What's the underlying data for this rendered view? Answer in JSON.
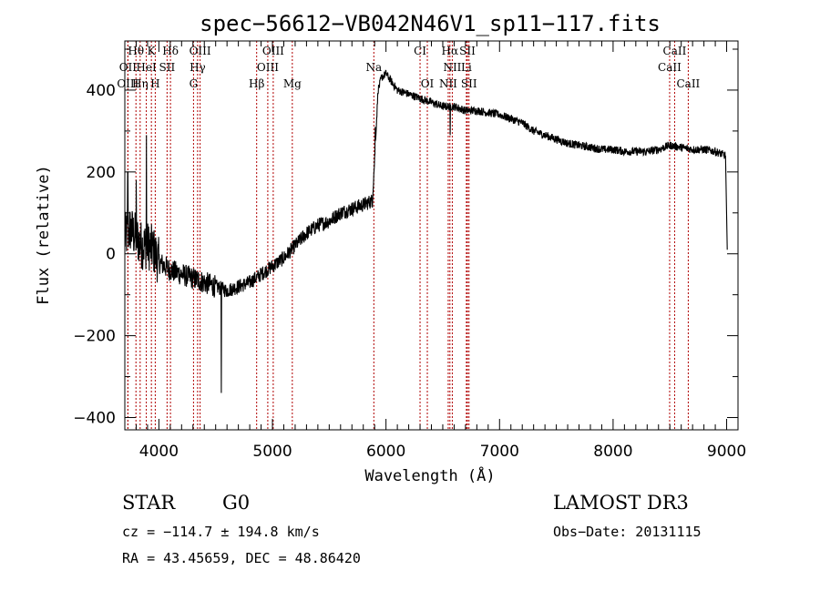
{
  "chart_data": {
    "type": "line",
    "title": "spec−56612−VB042N46V1_sp11−117.fits",
    "xlabel": "Wavelength (Å)",
    "ylabel": "Flux (relative)",
    "xlim": [
      3700,
      9100
    ],
    "ylim": [
      -430,
      520
    ],
    "x_ticks": [
      4000,
      5000,
      6000,
      7000,
      8000,
      9000
    ],
    "x_tick_labels": [
      "4000",
      "5000",
      "6000",
      "7000",
      "8000",
      "9000"
    ],
    "y_ticks": [
      -400,
      -200,
      0,
      200,
      400
    ],
    "y_tick_labels": [
      "−400",
      "−200",
      "0",
      "200",
      "400"
    ],
    "spectrum_anchors": {
      "x": [
        3700,
        3750,
        3800,
        3850,
        3900,
        3950,
        4000,
        4100,
        4200,
        4300,
        4400,
        4500,
        4600,
        4700,
        4800,
        4900,
        5000,
        5100,
        5200,
        5300,
        5400,
        5500,
        5600,
        5700,
        5800,
        5880,
        5905,
        5930,
        5960,
        6000,
        6050,
        6100,
        6200,
        6300,
        6400,
        6500,
        6600,
        6700,
        6800,
        6900,
        7000,
        7100,
        7200,
        7300,
        7400,
        7500,
        7600,
        7700,
        7800,
        7900,
        8000,
        8100,
        8200,
        8300,
        8400,
        8500,
        8600,
        8700,
        8800,
        8900,
        8990
      ],
      "y": [
        40,
        60,
        40,
        20,
        20,
        10,
        -20,
        -40,
        -50,
        -60,
        -70,
        -80,
        -90,
        -80,
        -70,
        -50,
        -30,
        -10,
        20,
        50,
        70,
        80,
        100,
        110,
        120,
        130,
        260,
        400,
        430,
        440,
        420,
        400,
        390,
        380,
        370,
        360,
        360,
        350,
        350,
        345,
        340,
        330,
        320,
        300,
        290,
        280,
        270,
        265,
        260,
        255,
        255,
        250,
        250,
        250,
        255,
        265,
        260,
        255,
        255,
        250,
        240
      ],
      "dips": [
        {
          "x": 4550,
          "y": -340
        },
        {
          "x": 5905,
          "y": 310
        },
        {
          "x": 6565,
          "y": 290
        }
      ],
      "spikes": [
        {
          "x": 3727,
          "y": 200
        },
        {
          "x": 3890,
          "y": 290
        },
        {
          "x": 3800,
          "y": 180
        }
      ],
      "end_drop": {
        "x": 9005,
        "y": 10
      }
    },
    "lines": [
      {
        "label": "Hθ",
        "wavelength": 3798,
        "row": 0
      },
      {
        "label": "K",
        "wavelength": 3934,
        "row": 0
      },
      {
        "label": "Hδ",
        "wavelength": 4102,
        "row": 0
      },
      {
        "label": "OIII",
        "wavelength": 4363,
        "row": 0
      },
      {
        "label": "OIII",
        "wavelength": 5007,
        "row": 0
      },
      {
        "label": "CI",
        "wavelength": 6300,
        "row": 0
      },
      {
        "label": "Hα",
        "wavelength": 6563,
        "row": 0
      },
      {
        "label": "SII",
        "wavelength": 6717,
        "row": 0
      },
      {
        "label": "CaII",
        "wavelength": 8542,
        "row": 0
      },
      {
        "label": "OII",
        "wavelength": 3727,
        "row": 1
      },
      {
        "label": "HeI",
        "wavelength": 3889,
        "row": 1
      },
      {
        "label": "SII",
        "wavelength": 4072,
        "row": 1
      },
      {
        "label": "Hγ",
        "wavelength": 4341,
        "row": 1
      },
      {
        "label": "OIII",
        "wavelength": 4959,
        "row": 1
      },
      {
        "label": "Na",
        "wavelength": 5893,
        "row": 1
      },
      {
        "label": "NII",
        "wavelength": 6584,
        "row": 1
      },
      {
        "label": "Li",
        "wavelength": 6708,
        "row": 1
      },
      {
        "label": "CaII",
        "wavelength": 8498,
        "row": 1
      },
      {
        "label": "OIII",
        "wavelength": 3727,
        "row": 2
      },
      {
        "label": "Hη",
        "wavelength": 3835,
        "row": 2
      },
      {
        "label": "H",
        "wavelength": 3968,
        "row": 2
      },
      {
        "label": "G",
        "wavelength": 4305,
        "row": 2
      },
      {
        "label": "Hβ",
        "wavelength": 4861,
        "row": 2
      },
      {
        "label": "Mg",
        "wavelength": 5175,
        "row": 2
      },
      {
        "label": "OI",
        "wavelength": 6364,
        "row": 2
      },
      {
        "label": "NII",
        "wavelength": 6548,
        "row": 2
      },
      {
        "label": "SII",
        "wavelength": 6731,
        "row": 2
      },
      {
        "label": "CaII",
        "wavelength": 8662,
        "row": 2
      }
    ]
  },
  "info": {
    "class": "STAR",
    "subclass": "G0",
    "survey": "LAMOST DR3",
    "cz": "cz = −114.7 ± 194.8 km/s",
    "obs_date": "Obs−Date: 20131115",
    "coords": "RA =  43.45659, DEC =  48.86420"
  },
  "colors": {
    "line_marker": "#b00000",
    "spectrum": "#000000",
    "axes": "#000000"
  }
}
